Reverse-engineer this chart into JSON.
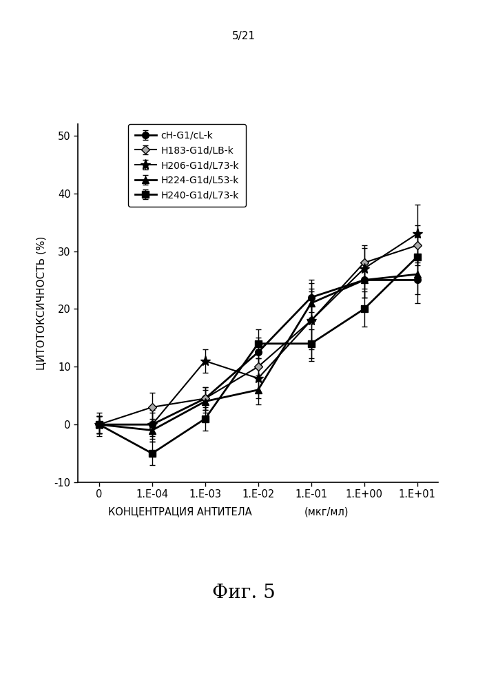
{
  "title_page": "5/21",
  "fig_label": "Фиг. 5",
  "xlabel": "КОНЦЕНТРАЦИЯ АНТИТЕЛА",
  "xlabel_units": "(мкг/мл)",
  "ylabel": "ЦИТОТОКСИЧНОСТЬ (%)",
  "ylim": [
    -10,
    52
  ],
  "yticks": [
    -10,
    0,
    10,
    20,
    30,
    40,
    50
  ],
  "x_positions": [
    0,
    1,
    2,
    3,
    4,
    5,
    6
  ],
  "x_labels": [
    "0",
    "1.E-04",
    "1.E-03",
    "1.E-02",
    "1.E-01",
    "1.E+00",
    "1.E+01"
  ],
  "series": [
    {
      "label": "cH-G1/cL-k",
      "marker": "o",
      "markersize": 7,
      "linewidth": 2,
      "y": [
        0,
        0,
        4.5,
        12.5,
        22,
        25,
        25
      ],
      "yerr": [
        1.5,
        2.5,
        2.0,
        2.5,
        2.5,
        3.0,
        4.0
      ],
      "markerfacecolor": "black"
    },
    {
      "label": "H183-G1d/LB-k",
      "marker": "D",
      "markersize": 6,
      "linewidth": 1.5,
      "y": [
        0,
        3,
        4.5,
        10,
        18,
        28,
        31
      ],
      "yerr": [
        1.5,
        2.5,
        2.0,
        2.5,
        7.0,
        3.0,
        3.5
      ],
      "markerfacecolor": "#aaaaaa"
    },
    {
      "label": "H206-G1d/L73-k",
      "marker": "*",
      "markersize": 11,
      "linewidth": 1.5,
      "y": [
        0,
        0,
        11,
        8,
        18,
        27,
        33
      ],
      "yerr": [
        1.5,
        2.0,
        2.0,
        3.5,
        5.0,
        3.5,
        5.0
      ],
      "markerfacecolor": "black"
    },
    {
      "label": "H224-G1d/L53-k",
      "marker": "^",
      "markersize": 7,
      "linewidth": 2,
      "y": [
        0,
        -1,
        4,
        6,
        21,
        25,
        26
      ],
      "yerr": [
        1.5,
        2.0,
        2.0,
        2.5,
        2.5,
        3.0,
        3.5
      ],
      "markerfacecolor": "black"
    },
    {
      "label": "H240-G1d/L73-k",
      "marker": "s",
      "markersize": 7,
      "linewidth": 2,
      "y": [
        0,
        -5,
        1,
        14,
        14,
        20,
        29
      ],
      "yerr": [
        2.0,
        2.0,
        2.0,
        2.5,
        2.5,
        3.0,
        3.5
      ],
      "markerfacecolor": "black"
    }
  ],
  "background_color": "white"
}
